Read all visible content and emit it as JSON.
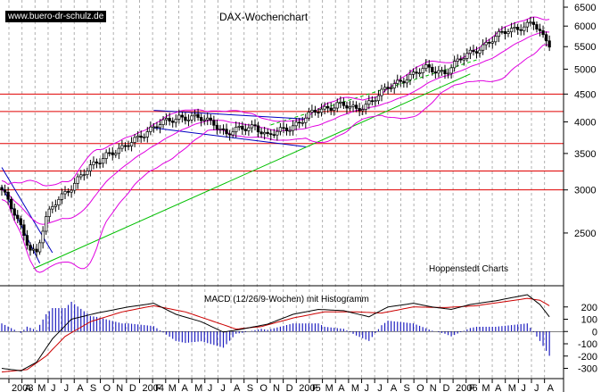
{
  "header": {
    "website": "www.buero-dr-schulz.de",
    "title": "DAX-Wochenchart",
    "source": "Hoppenstedt Charts"
  },
  "colors": {
    "candles": "#000000",
    "bollinger": "#e000e0",
    "support_lines": "#e00000",
    "trend_green": "#00c000",
    "trend_blue": "#0000c0",
    "macd_line": "#000000",
    "signal_line": "#cc0000",
    "histogram": "#2020c0",
    "grid": "#b0b0b0"
  },
  "chart_data": [
    {
      "type": "candlestick",
      "title": "DAX-Wochenchart",
      "y_scale": "log",
      "ylim": [
        2000,
        6700
      ],
      "y_ticks": [
        6500,
        6000,
        5500,
        5000,
        4500,
        4000,
        3500,
        3000,
        2500
      ],
      "x_labels": [
        "2003",
        "A",
        "M",
        "J",
        "J",
        "A",
        "S",
        "O",
        "N",
        "D",
        "2004",
        "F",
        "M",
        "A",
        "M",
        "J",
        "J",
        "A",
        "S",
        "O",
        "N",
        "D",
        "2005",
        "F",
        "M",
        "A",
        "M",
        "J",
        "J",
        "A",
        "S",
        "O",
        "N",
        "D",
        "2006",
        "F",
        "M",
        "A",
        "M",
        "J",
        "J",
        "A"
      ],
      "horizontal_levels": [
        4500,
        4180,
        3650,
        3250,
        3000
      ],
      "price_anchors": [
        {
          "x": 0,
          "y": 3000
        },
        {
          "x": 4,
          "y": 2700
        },
        {
          "x": 9,
          "y": 2350
        },
        {
          "x": 11,
          "y": 2300
        },
        {
          "x": 14,
          "y": 2650
        },
        {
          "x": 18,
          "y": 2900
        },
        {
          "x": 22,
          "y": 3050
        },
        {
          "x": 27,
          "y": 3250
        },
        {
          "x": 33,
          "y": 3500
        },
        {
          "x": 38,
          "y": 3550
        },
        {
          "x": 44,
          "y": 3800
        },
        {
          "x": 50,
          "y": 3950
        },
        {
          "x": 56,
          "y": 4100
        },
        {
          "x": 62,
          "y": 4050
        },
        {
          "x": 67,
          "y": 4000
        },
        {
          "x": 71,
          "y": 3800
        },
        {
          "x": 76,
          "y": 3880
        },
        {
          "x": 80,
          "y": 3950
        },
        {
          "x": 84,
          "y": 3750
        },
        {
          "x": 88,
          "y": 3850
        },
        {
          "x": 94,
          "y": 4000
        },
        {
          "x": 100,
          "y": 4200
        },
        {
          "x": 106,
          "y": 4320
        },
        {
          "x": 112,
          "y": 4200
        },
        {
          "x": 117,
          "y": 4400
        },
        {
          "x": 122,
          "y": 4600
        },
        {
          "x": 128,
          "y": 4850
        },
        {
          "x": 134,
          "y": 5000
        },
        {
          "x": 140,
          "y": 4950
        },
        {
          "x": 146,
          "y": 5250
        },
        {
          "x": 150,
          "y": 5450
        },
        {
          "x": 156,
          "y": 5700
        },
        {
          "x": 160,
          "y": 5900
        },
        {
          "x": 164,
          "y": 6000
        },
        {
          "x": 168,
          "y": 6050
        },
        {
          "x": 171,
          "y": 5700
        },
        {
          "x": 173,
          "y": 5580
        }
      ]
    },
    {
      "type": "macd",
      "title": "MACD (12/26/9-Wochen) mit Histogramm",
      "ylim": [
        -340,
        300
      ],
      "y_ticks": [
        200,
        100,
        0,
        -100,
        -200,
        -300
      ],
      "macd_anchors": [
        {
          "x": 0,
          "y": -300
        },
        {
          "x": 6,
          "y": -320
        },
        {
          "x": 11,
          "y": -250
        },
        {
          "x": 16,
          "y": -60
        },
        {
          "x": 22,
          "y": 100
        },
        {
          "x": 30,
          "y": 150
        },
        {
          "x": 40,
          "y": 200
        },
        {
          "x": 48,
          "y": 230
        },
        {
          "x": 55,
          "y": 140
        },
        {
          "x": 63,
          "y": 80
        },
        {
          "x": 70,
          "y": -5
        },
        {
          "x": 76,
          "y": 20
        },
        {
          "x": 84,
          "y": 60
        },
        {
          "x": 92,
          "y": 140
        },
        {
          "x": 100,
          "y": 180
        },
        {
          "x": 108,
          "y": 170
        },
        {
          "x": 116,
          "y": 120
        },
        {
          "x": 122,
          "y": 200
        },
        {
          "x": 130,
          "y": 230
        },
        {
          "x": 136,
          "y": 200
        },
        {
          "x": 142,
          "y": 180
        },
        {
          "x": 148,
          "y": 220
        },
        {
          "x": 156,
          "y": 250
        },
        {
          "x": 162,
          "y": 280
        },
        {
          "x": 166,
          "y": 300
        },
        {
          "x": 170,
          "y": 220
        },
        {
          "x": 173,
          "y": 120
        }
      ],
      "signal_anchors": [
        {
          "x": 0,
          "y": -330
        },
        {
          "x": 8,
          "y": -310
        },
        {
          "x": 14,
          "y": -200
        },
        {
          "x": 20,
          "y": -40
        },
        {
          "x": 28,
          "y": 80
        },
        {
          "x": 38,
          "y": 160
        },
        {
          "x": 48,
          "y": 210
        },
        {
          "x": 58,
          "y": 160
        },
        {
          "x": 66,
          "y": 90
        },
        {
          "x": 74,
          "y": 20
        },
        {
          "x": 82,
          "y": 40
        },
        {
          "x": 92,
          "y": 110
        },
        {
          "x": 102,
          "y": 160
        },
        {
          "x": 112,
          "y": 160
        },
        {
          "x": 120,
          "y": 150
        },
        {
          "x": 130,
          "y": 200
        },
        {
          "x": 140,
          "y": 195
        },
        {
          "x": 150,
          "y": 210
        },
        {
          "x": 158,
          "y": 240
        },
        {
          "x": 166,
          "y": 270
        },
        {
          "x": 170,
          "y": 255
        },
        {
          "x": 173,
          "y": 210
        }
      ]
    }
  ]
}
